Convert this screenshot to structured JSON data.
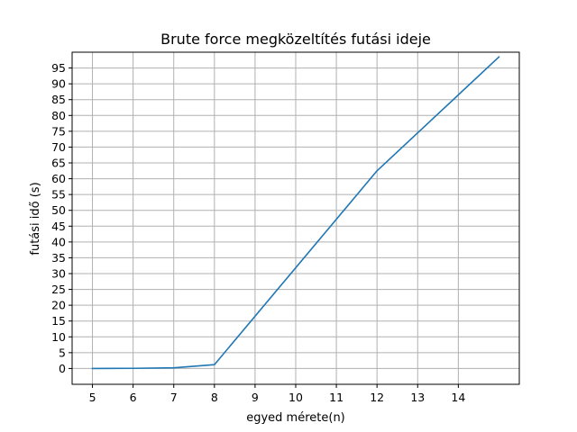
{
  "chart_data": {
    "type": "line",
    "title": "Brute force megközeltítés futási ideje",
    "xlabel": "egyed mérete(n)",
    "ylabel": "futási idő (s)",
    "xlim": [
      4.5,
      15.5
    ],
    "ylim": [
      -5,
      100
    ],
    "xticks": [
      5,
      6,
      7,
      8,
      9,
      10,
      11,
      12,
      13,
      14
    ],
    "yticks": [
      0,
      5,
      10,
      15,
      20,
      25,
      30,
      35,
      40,
      45,
      50,
      55,
      60,
      65,
      70,
      75,
      80,
      85,
      90,
      95
    ],
    "grid": true,
    "line_color": "#1f77b4",
    "series": [
      {
        "x": [
          5,
          6,
          7,
          8,
          12,
          15
        ],
        "y": [
          0,
          0.05,
          0.2,
          1.2,
          62.5,
          98.5
        ]
      }
    ]
  }
}
